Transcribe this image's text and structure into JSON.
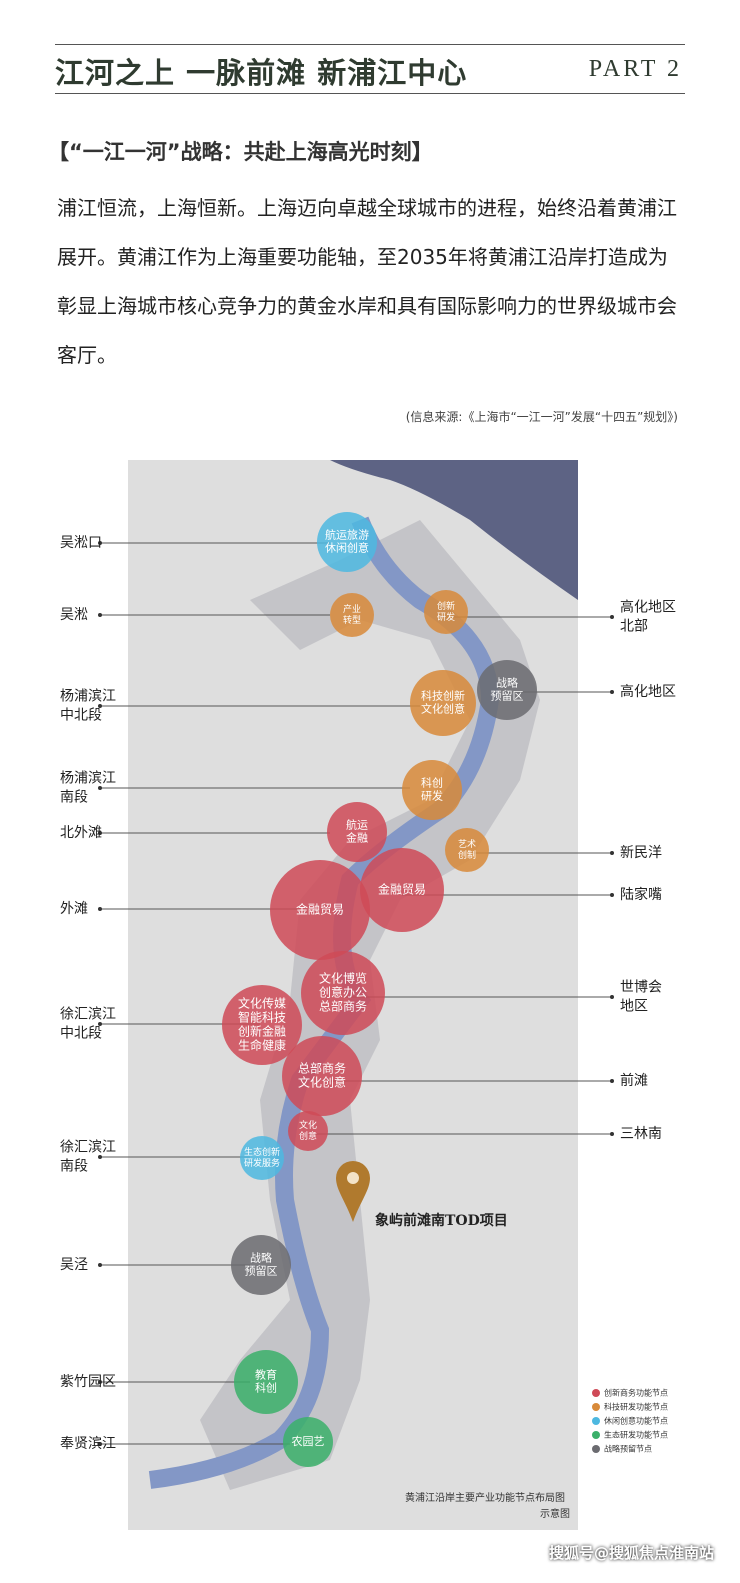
{
  "header": {
    "title": "江河之上 一脉前滩 新浦江中心",
    "part": "PART 2"
  },
  "section": {
    "heading": "【“一江一河”战略：共赴上海高光时刻】",
    "paragraph": "浦江恒流，上海恒新。上海迈向卓越全球城市的进程，始终沿着黄浦江展开。黄浦江作为上海重要功能轴，至2035年将黄浦江沿岸打造成为彰显上海城市核心竞争力的黄金水岸和具有国际影响力的世界级城市会客厅。",
    "source": "(信息来源:《上海市“一江一河”发展“十四五”规划》)"
  },
  "map": {
    "left_labels": [
      [
        "吴淞口"
      ],
      [
        "吴淞"
      ],
      [
        "杨浦滨江",
        "中北段"
      ],
      [
        "杨浦滨江",
        "南段"
      ],
      [
        "北外滩"
      ],
      [
        "外滩"
      ],
      [
        "徐汇滨江",
        "中北段"
      ],
      [
        "徐汇滨江",
        "南段"
      ],
      [
        "吴泾"
      ],
      [
        "紫竹园区"
      ],
      [
        "奉贤滨江"
      ]
    ],
    "right_labels": [
      [
        "高化地区",
        "北部"
      ],
      [
        "高化地区"
      ],
      [
        "新民洋"
      ],
      [
        "陆家嘴"
      ],
      [
        "世博会",
        "地区"
      ],
      [
        "前滩"
      ],
      [
        "三林南"
      ]
    ],
    "nodes": [
      {
        "label": [
          "航运旅游",
          "休闲创意"
        ],
        "color": "#4db8e0"
      },
      {
        "label": [
          "产业",
          "转型"
        ],
        "color": "#d88a3a"
      },
      {
        "label": [
          "创新",
          "研发"
        ],
        "color": "#d88a3a"
      },
      {
        "label": [
          "战略",
          "预留区"
        ],
        "color": "#6b6b70"
      },
      {
        "label": [
          "科技创新",
          "文化创意"
        ],
        "color": "#d88a3a"
      },
      {
        "label": [
          "科创",
          "研发"
        ],
        "color": "#d88a3a"
      },
      {
        "label": [
          "航运",
          "金融"
        ],
        "color": "#cf4a57"
      },
      {
        "label": [
          "艺术",
          "创制"
        ],
        "color": "#d88a3a"
      },
      {
        "label": [
          "金融贸易"
        ],
        "color": "#cf4a57"
      },
      {
        "label": [
          "金融贸易"
        ],
        "color": "#cf4a57"
      },
      {
        "label": [
          "文化博览",
          "创意办公",
          "总部商务"
        ],
        "color": "#cf4a57"
      },
      {
        "label": [
          "文化传媒",
          "智能科技",
          "创新金融",
          "生命健康"
        ],
        "color": "#cf4a57"
      },
      {
        "label": [
          "总部商务",
          "文化创意"
        ],
        "color": "#cf4a57"
      },
      {
        "label": [
          "文化",
          "创意"
        ],
        "color": "#cf4a57"
      },
      {
        "label": [
          "生态创新",
          "研发服务"
        ],
        "color": "#4db8e0"
      },
      {
        "label": [
          "战略",
          "预留区"
        ],
        "color": "#6b6b70"
      },
      {
        "label": [
          "教育",
          "科创"
        ],
        "color": "#3bb06a"
      },
      {
        "label": [
          "农园艺"
        ],
        "color": "#3bb06a"
      }
    ],
    "project": "象屿前滩南TOD项目",
    "legend": [
      {
        "name": "创新商务功能节点",
        "color": "#cf4a57"
      },
      {
        "name": "科技研发功能节点",
        "color": "#d88a3a"
      },
      {
        "name": "休闲创意功能节点",
        "color": "#4db8e0"
      },
      {
        "name": "生态研发功能节点",
        "color": "#3bb06a"
      },
      {
        "name": "战略预留节点",
        "color": "#6b6b70"
      }
    ],
    "caption": [
      "黄浦江沿岸主要产业功能节点布局图",
      "示意图"
    ]
  },
  "watermark": "搜狐号@搜狐焦点淮南站"
}
